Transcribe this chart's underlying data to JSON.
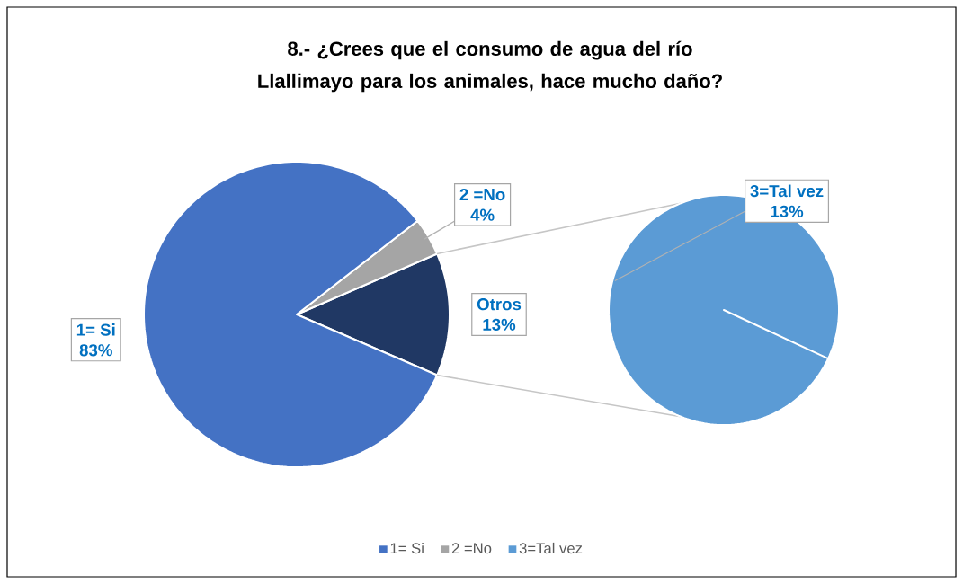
{
  "chart_data": [
    {
      "type": "pie",
      "title": "8.- ¿Crees que el consumo de agua del río Llallimayo para los animales, hace mucho daño?",
      "categories": [
        "1= Si",
        "2 =No",
        "Otros"
      ],
      "values": [
        83,
        4,
        13
      ],
      "value_labels": [
        "83%",
        "4%",
        "13%"
      ],
      "colors": [
        "#4472c4",
        "#a5a5a5",
        "#203864"
      ],
      "legend": "bottom"
    },
    {
      "type": "pie",
      "categories": [
        "3=Tal vez"
      ],
      "values": [
        13
      ],
      "value_labels": [
        "13%"
      ],
      "colors": [
        "#5b9bd5"
      ]
    }
  ]
}
